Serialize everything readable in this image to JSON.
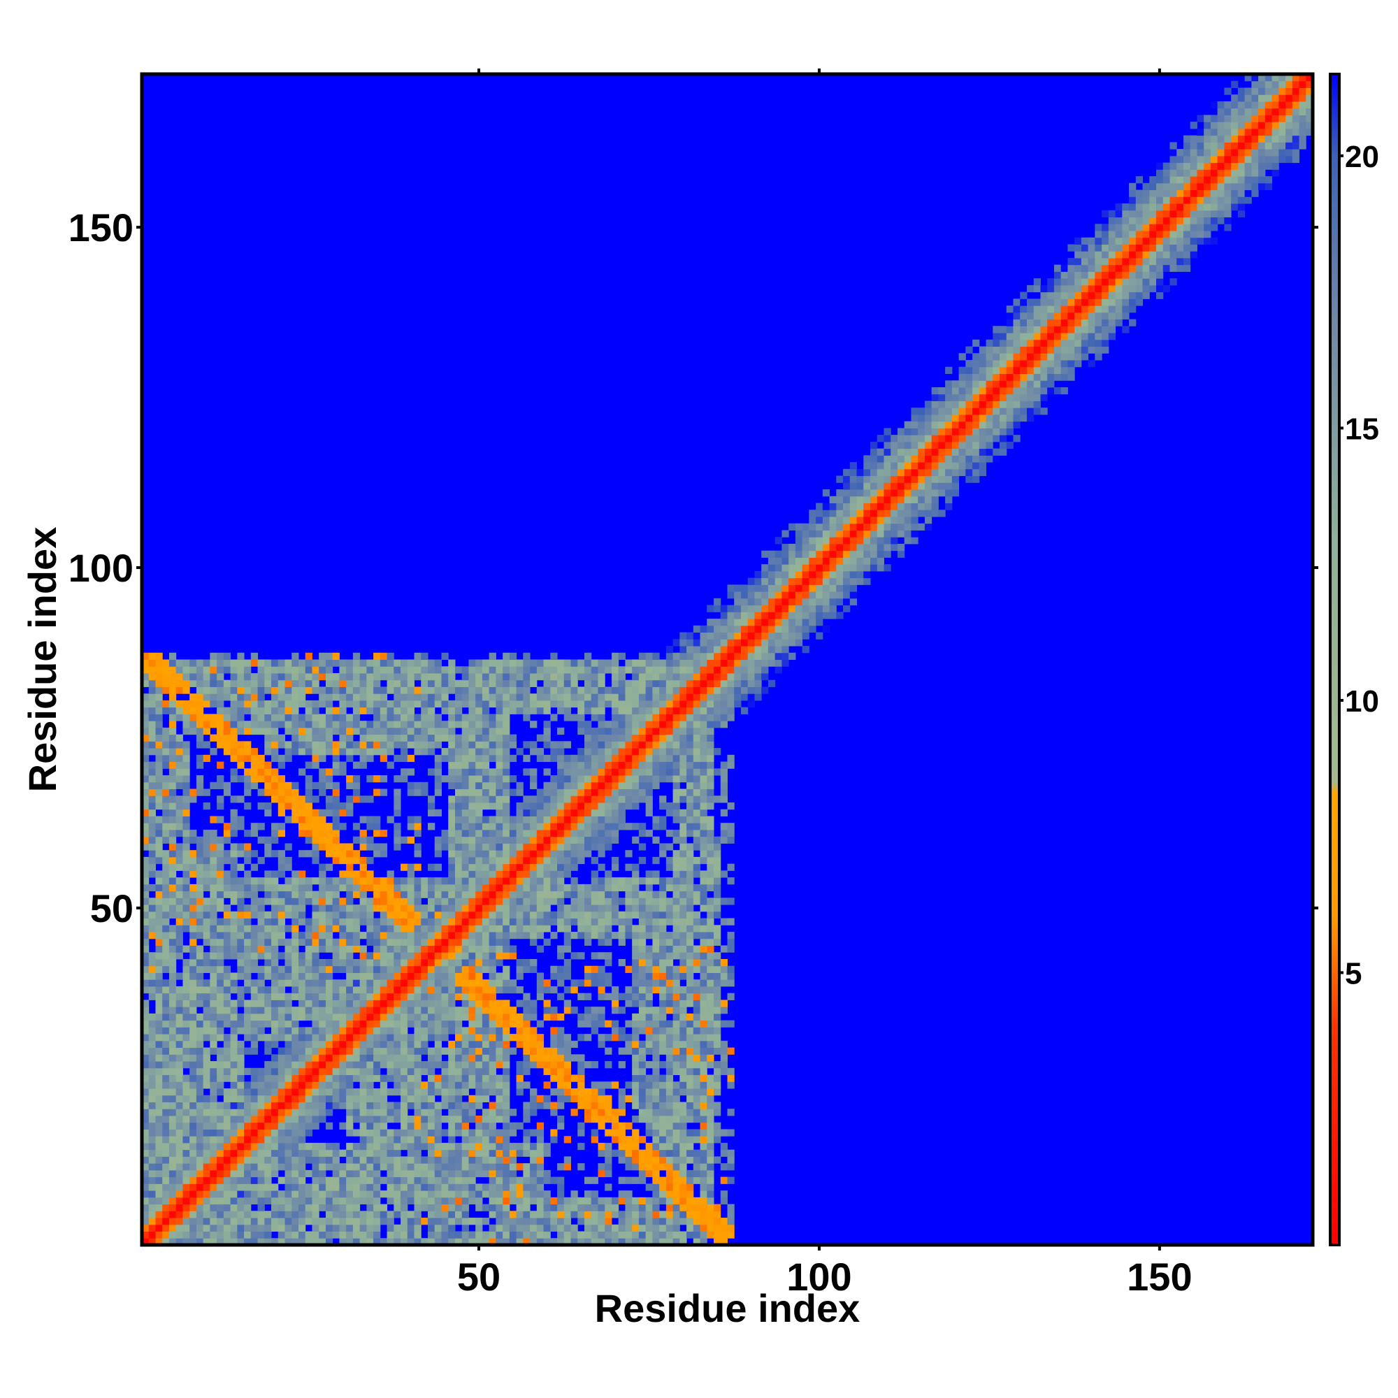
{
  "chart_data": {
    "type": "heatmap",
    "title": "",
    "xlabel": "Residue index",
    "ylabel": "Residue index",
    "n_residues": 172,
    "xlim": [
      0.5,
      172.5
    ],
    "ylim": [
      0.5,
      172.5
    ],
    "x_ticks": [
      50,
      100,
      150
    ],
    "y_ticks": [
      50,
      100,
      150
    ],
    "x_tick_labels": [
      "50",
      "100",
      "150"
    ],
    "y_tick_labels": [
      "50",
      "100",
      "150"
    ],
    "colorbar": {
      "range": [
        0,
        21.5
      ],
      "ticks": [
        5,
        10,
        15,
        20
      ],
      "tick_labels": [
        "5",
        "10",
        "15",
        "20"
      ],
      "stops": [
        {
          "value": 0,
          "color": "#ff0000"
        },
        {
          "value": 4,
          "color": "#ff3300"
        },
        {
          "value": 6,
          "color": "#ff9900"
        },
        {
          "value": 8.3,
          "color": "#ffa500"
        },
        {
          "value": 8.5,
          "color": "#a5b98c"
        },
        {
          "value": 13,
          "color": "#8fb09a"
        },
        {
          "value": 17,
          "color": "#6e88a8"
        },
        {
          "value": 20,
          "color": "#3d62b8"
        },
        {
          "value": 21.5,
          "color": "#0000ff"
        }
      ]
    },
    "background_color": "#0000ff",
    "contact_regions": [
      {
        "region": "diagonal band",
        "x_range": [
          1,
          172
        ],
        "y_range": [
          1,
          172
        ],
        "values": "0-4 on diagonal, 8-20 within ~8 residues"
      },
      {
        "region": "N-terminal domain block",
        "x_range": [
          1,
          87
        ],
        "y_range": [
          1,
          87
        ],
        "values": "mostly 9-20 with 5-8 contacts"
      },
      {
        "region": "anti-diagonal contact arc",
        "x_range": [
          5,
          85
        ],
        "y_range": [
          3,
          82
        ],
        "values": "5-8"
      }
    ]
  }
}
